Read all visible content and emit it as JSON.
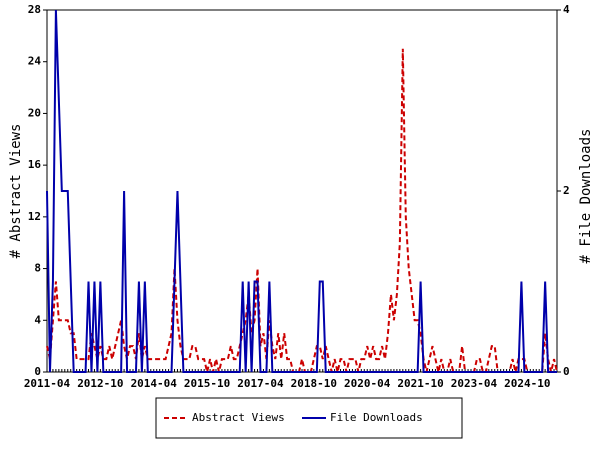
{
  "chart_data": {
    "type": "line",
    "y_label": "# Abstract Views",
    "y2_label": "# File Downloads",
    "categories": [
      "2011-04",
      null,
      null,
      null,
      null,
      null,
      null,
      null,
      null,
      null,
      null,
      null,
      null,
      null,
      null,
      null,
      null,
      null,
      "2012-10",
      null,
      null,
      null,
      null,
      null,
      null,
      null,
      null,
      null,
      null,
      null,
      null,
      null,
      null,
      null,
      null,
      null,
      "2014-04",
      null,
      null,
      null,
      null,
      null,
      null,
      null,
      null,
      null,
      null,
      null,
      null,
      null,
      null,
      null,
      null,
      null,
      "2015-10",
      null,
      null,
      null,
      null,
      null,
      null,
      null,
      null,
      null,
      null,
      null,
      null,
      null,
      null,
      null,
      null,
      null,
      "2017-04",
      null,
      null,
      null,
      null,
      null,
      null,
      null,
      null,
      null,
      null,
      null,
      null,
      null,
      null,
      null,
      null,
      null,
      "2018-10",
      null,
      null,
      null,
      null,
      null,
      null,
      null,
      null,
      null,
      null,
      null,
      null,
      null,
      null,
      null,
      null,
      null,
      "2020-04",
      null,
      null,
      null,
      null,
      null,
      null,
      null,
      null,
      null,
      null,
      null,
      null,
      null,
      null,
      null,
      null,
      null,
      "2021-10",
      null,
      null,
      null,
      null,
      null,
      null,
      null,
      null,
      null,
      null,
      null,
      null,
      null,
      null,
      null,
      null,
      null,
      "2023-04",
      null,
      null,
      null,
      null,
      null,
      null,
      null,
      null,
      null,
      null,
      null,
      null,
      null,
      null,
      null,
      null,
      null,
      "2024-10",
      null,
      null,
      null,
      null,
      null,
      null,
      null,
      null,
      null,
      null
    ],
    "series": [
      {
        "name": "Abstract Views",
        "color": "#cc0000",
        "dashed": true,
        "values": [
          2,
          1,
          4,
          7,
          4,
          4,
          4,
          4,
          3,
          3,
          1,
          1,
          1,
          1,
          1,
          3,
          2,
          1,
          2,
          1,
          1,
          2,
          1,
          2,
          3,
          4,
          2,
          1,
          2,
          2,
          1,
          3,
          1,
          2,
          1,
          1,
          1,
          1,
          1,
          1,
          1,
          2,
          3,
          8,
          4,
          2,
          1,
          1,
          1,
          2,
          2,
          1,
          1,
          1,
          0,
          1,
          0,
          1,
          0,
          1,
          1,
          1,
          2,
          1,
          1,
          2,
          3,
          4,
          6,
          3,
          4,
          8,
          2,
          3,
          1,
          4,
          2,
          1,
          3,
          1,
          3,
          1,
          1,
          0,
          0,
          0,
          1,
          0,
          0,
          0,
          1,
          2,
          2,
          1,
          2,
          1,
          0,
          1,
          0,
          1,
          1,
          0,
          1,
          1,
          1,
          0,
          1,
          1,
          2,
          1,
          2,
          1,
          1,
          2,
          1,
          3,
          6,
          4,
          6,
          10,
          25,
          12,
          8,
          6,
          4,
          4,
          3,
          1,
          0,
          1,
          2,
          1,
          0,
          1,
          0,
          0,
          1,
          0,
          0,
          0,
          2,
          0,
          0,
          0,
          0,
          1,
          1,
          0,
          0,
          1,
          2,
          2,
          0,
          0,
          0,
          0,
          0,
          1,
          0,
          1,
          1,
          1,
          0,
          0,
          0,
          0,
          0,
          0,
          3,
          1,
          0,
          1,
          0
        ]
      },
      {
        "name": "File Downloads",
        "color": "#0000aa",
        "axis": "y2",
        "values": [
          2,
          0,
          1,
          4,
          3,
          2,
          2,
          2,
          1,
          0,
          0,
          0,
          0,
          0,
          1,
          0,
          1,
          0,
          1,
          0,
          0,
          0,
          0,
          0,
          0,
          0,
          2,
          0,
          0,
          0,
          0,
          1,
          0,
          1,
          0,
          0,
          0,
          0,
          0,
          0,
          0,
          0,
          0,
          1,
          2,
          1,
          0,
          0,
          0,
          0,
          0,
          0,
          0,
          0,
          0,
          0,
          0,
          0,
          0,
          0,
          0,
          0,
          0,
          0,
          0,
          0,
          1,
          0,
          1,
          0,
          1,
          1,
          0,
          0,
          0,
          1,
          0,
          0,
          0,
          0,
          0,
          0,
          0,
          0,
          0,
          0,
          0,
          0,
          0,
          0,
          0,
          0,
          1,
          1,
          0,
          0,
          0,
          0,
          0,
          0,
          0,
          0,
          0,
          0,
          0,
          0,
          0,
          0,
          0,
          0,
          0,
          0,
          0,
          0,
          0,
          0,
          0,
          0,
          0,
          0,
          0,
          0,
          0,
          0,
          0,
          0,
          1,
          0,
          0,
          0,
          0,
          0,
          0,
          0,
          0,
          0,
          0,
          0,
          0,
          0,
          0,
          0,
          0,
          0,
          0,
          0,
          0,
          0,
          0,
          0,
          0,
          0,
          0,
          0,
          0,
          0,
          0,
          0,
          0,
          0,
          1,
          0,
          0,
          0,
          0,
          0,
          0,
          0,
          1,
          0,
          0,
          0,
          0
        ]
      }
    ],
    "ylim": [
      0,
      28
    ],
    "yticks": [
      0,
      4,
      8,
      12,
      16,
      20,
      24,
      28
    ],
    "y2lim": [
      0,
      4
    ],
    "y2ticks": [
      0,
      2,
      4
    ]
  }
}
